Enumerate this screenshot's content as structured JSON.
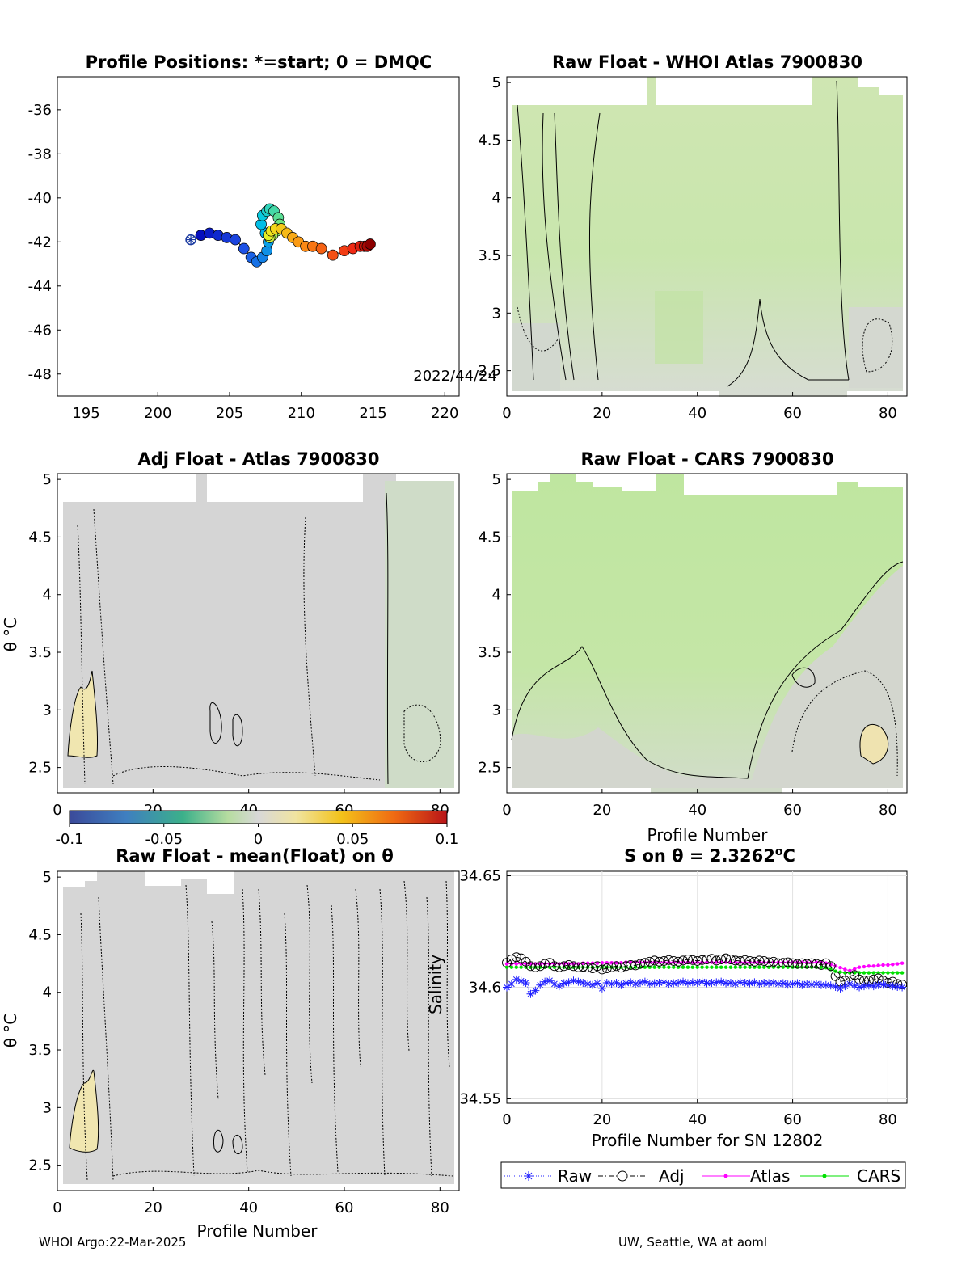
{
  "footer": {
    "left": "WHOI Argo:22-Mar-2025",
    "right": "UW, Seattle, WA at aoml"
  },
  "chart_data": [
    {
      "type": "scatter",
      "id": "positions",
      "title": "Profile Positions: *=start; 0 = DMQC",
      "xlim": [
        193,
        221
      ],
      "ylim": [
        -49,
        -34.5
      ],
      "xticks": [
        195,
        200,
        205,
        210,
        215,
        220
      ],
      "yticks": [
        -36,
        -38,
        -40,
        -42,
        -44,
        -46,
        -48
      ],
      "annotation": "2022/44/24",
      "x": [
        202.3,
        203.0,
        203.6,
        204.2,
        204.8,
        205.4,
        206.0,
        206.5,
        206.9,
        207.3,
        207.6,
        207.7,
        207.5,
        207.2,
        207.3,
        207.6,
        207.8,
        208.1,
        208.4,
        208.5,
        208.3,
        208.0,
        207.8,
        207.7,
        207.9,
        208.2,
        208.6,
        209.0,
        209.4,
        209.8,
        210.3,
        210.8,
        211.4,
        212.2,
        213.0,
        213.6,
        214.1,
        214.4,
        214.6,
        214.8
      ],
      "y": [
        -41.9,
        -41.7,
        -41.6,
        -41.7,
        -41.8,
        -41.9,
        -42.3,
        -42.7,
        -42.9,
        -42.7,
        -42.4,
        -42.0,
        -41.6,
        -41.2,
        -40.8,
        -40.6,
        -40.5,
        -40.6,
        -40.9,
        -41.2,
        -41.5,
        -41.7,
        -41.8,
        -41.7,
        -41.5,
        -41.4,
        -41.4,
        -41.6,
        -41.8,
        -42.0,
        -42.2,
        -42.2,
        -42.3,
        -42.6,
        -42.4,
        -42.3,
        -42.2,
        -42.2,
        -42.2,
        -42.1
      ]
    },
    {
      "type": "heatmap",
      "id": "raw-atlas",
      "title": "Raw Float - WHOI Atlas  7900830",
      "xlim": [
        0,
        84
      ],
      "ylim": [
        2.28,
        5.05
      ],
      "xticks": [
        0,
        20,
        40,
        60,
        80
      ],
      "yticks": [
        2.5,
        3,
        3.5,
        4,
        4.5,
        5
      ]
    },
    {
      "type": "heatmap",
      "id": "adj-atlas",
      "title": "Adj Float - Atlas  7900830",
      "ylabel": "θ °C",
      "xlim": [
        0,
        84
      ],
      "ylim": [
        2.28,
        5.05
      ],
      "xticks": [
        0,
        20,
        40,
        60,
        80
      ],
      "yticks": [
        2.5,
        3,
        3.5,
        4,
        4.5,
        5
      ]
    },
    {
      "type": "heatmap",
      "id": "raw-cars",
      "title": "Raw Float - CARS  7900830",
      "xlabel": "Profile Number",
      "xlim": [
        0,
        84
      ],
      "ylim": [
        2.28,
        5.05
      ],
      "xticks": [
        0,
        20,
        40,
        60,
        80
      ],
      "yticks": [
        2.5,
        3,
        3.5,
        4,
        4.5,
        5
      ]
    },
    {
      "type": "heatmap",
      "id": "raw-mean",
      "title": "Raw Float - mean(Float) on θ",
      "ylabel": "θ °C",
      "xlabel": "Profile Number",
      "xlim": [
        0,
        84
      ],
      "ylim": [
        2.28,
        5.05
      ],
      "xticks": [
        0,
        20,
        40,
        60,
        80
      ],
      "yticks": [
        2.5,
        3,
        3.5,
        4,
        4.5,
        5
      ]
    },
    {
      "type": "colorbar",
      "id": "colorbar",
      "range": [
        -0.1,
        0.1
      ],
      "ticks": [
        "-0.1",
        "-0.05",
        "0",
        "0.05",
        "0.1"
      ]
    },
    {
      "type": "line",
      "id": "salinity",
      "title_main": "S on θ = 2.3262",
      "title_sup": "o",
      "title_unit": "C",
      "ylabel": "Salinity",
      "xlabel": "Profile Number for SN 12802",
      "xlim": [
        0,
        84
      ],
      "ylim": [
        34.548,
        34.652
      ],
      "xticks": [
        0,
        20,
        40,
        60,
        80
      ],
      "yticks": [
        34.55,
        34.6,
        34.65
      ],
      "legend": [
        "Raw",
        "Adj",
        "Atlas",
        "CARS"
      ],
      "legend_position": "bottom",
      "grid": true,
      "series": [
        {
          "name": "Raw",
          "color": "#2020ff",
          "y": [
            34.6,
            34.6015,
            34.6035,
            34.6028,
            34.602,
            34.597,
            34.5985,
            34.601,
            34.6025,
            34.603,
            34.6015,
            34.6005,
            34.6018,
            34.6022,
            34.603,
            34.6025,
            34.602,
            34.6015,
            34.601,
            34.6018,
            34.5995,
            34.602,
            34.6015,
            34.602,
            34.601,
            34.6018,
            34.6022,
            34.6015,
            34.602,
            34.6025,
            34.6015,
            34.6018,
            34.602,
            34.6022,
            34.6015,
            34.6018,
            34.602,
            34.6025,
            34.6018,
            34.6022,
            34.602,
            34.6025,
            34.6018,
            34.602,
            34.6022,
            34.6025,
            34.6018,
            34.602,
            34.6015,
            34.6022,
            34.602,
            34.6018,
            34.6022,
            34.6015,
            34.602,
            34.6018,
            34.602,
            34.6015,
            34.6018,
            34.6012,
            34.6015,
            34.6018,
            34.601,
            34.6015,
            34.6012,
            34.6015,
            34.601,
            34.601,
            34.6008,
            34.6002,
            34.5995,
            34.6005,
            34.6015,
            34.6008,
            34.6,
            34.6005,
            34.6008,
            34.6005,
            34.601,
            34.6012,
            34.6008,
            34.6005,
            34.6002,
            34.6
          ]
        },
        {
          "name": "Adj",
          "color": "#000000",
          "y": [
            34.611,
            34.6125,
            34.6135,
            34.613,
            34.6115,
            34.6095,
            34.609,
            34.6095,
            34.6105,
            34.611,
            34.6095,
            34.609,
            34.6095,
            34.61,
            34.6095,
            34.609,
            34.6092,
            34.6088,
            34.6085,
            34.6095,
            34.608,
            34.6085,
            34.609,
            34.6095,
            34.6088,
            34.6095,
            34.61,
            34.6098,
            34.6105,
            34.611,
            34.6115,
            34.612,
            34.6115,
            34.6118,
            34.6122,
            34.6118,
            34.6115,
            34.612,
            34.6125,
            34.6122,
            34.6118,
            34.6122,
            34.6125,
            34.6128,
            34.612,
            34.6125,
            34.613,
            34.6125,
            34.612,
            34.6118,
            34.6122,
            34.6118,
            34.6115,
            34.612,
            34.6118,
            34.6112,
            34.6115,
            34.6108,
            34.611,
            34.6112,
            34.6108,
            34.6105,
            34.6108,
            34.6105,
            34.6108,
            34.6105,
            34.61,
            34.6108,
            34.6095,
            34.605,
            34.6025,
            34.603,
            34.605,
            34.6055,
            34.6035,
            34.603,
            34.603,
            34.6035,
            34.604,
            34.603,
            34.602,
            34.6025,
            34.6015,
            34.6012
          ]
        },
        {
          "name": "Atlas",
          "color": "#ff00ff",
          "y": [
            34.6105,
            34.6105,
            34.6105,
            34.6105,
            34.6105,
            34.6105,
            34.6105,
            34.6105,
            34.6105,
            34.6105,
            34.6105,
            34.6105,
            34.6105,
            34.6105,
            34.6105,
            34.6105,
            34.6108,
            34.6108,
            34.6108,
            34.6108,
            34.611,
            34.611,
            34.611,
            34.611,
            34.611,
            34.6112,
            34.6112,
            34.6112,
            34.6112,
            34.6112,
            34.6112,
            34.6112,
            34.6112,
            34.6112,
            34.6112,
            34.6112,
            34.6112,
            34.6112,
            34.6112,
            34.6112,
            34.6112,
            34.6112,
            34.6112,
            34.6112,
            34.6112,
            34.6112,
            34.6112,
            34.6112,
            34.6112,
            34.6112,
            34.6112,
            34.6112,
            34.6112,
            34.6112,
            34.6112,
            34.6112,
            34.6112,
            34.6112,
            34.6112,
            34.6112,
            34.6112,
            34.6112,
            34.6112,
            34.6112,
            34.6112,
            34.6112,
            34.6112,
            34.6108,
            34.6102,
            34.6095,
            34.6088,
            34.608,
            34.6075,
            34.6082,
            34.609,
            34.6092,
            34.6095,
            34.6095,
            34.6098,
            34.61,
            34.61,
            34.6102,
            34.6105,
            34.6108
          ]
        },
        {
          "name": "CARS",
          "color": "#00e000",
          "y": [
            34.609,
            34.609,
            34.609,
            34.609,
            34.609,
            34.609,
            34.609,
            34.609,
            34.609,
            34.609,
            34.609,
            34.609,
            34.609,
            34.609,
            34.609,
            34.609,
            34.609,
            34.609,
            34.609,
            34.609,
            34.609,
            34.609,
            34.609,
            34.609,
            34.609,
            34.609,
            34.609,
            34.609,
            34.609,
            34.609,
            34.609,
            34.609,
            34.609,
            34.609,
            34.609,
            34.609,
            34.609,
            34.609,
            34.609,
            34.609,
            34.609,
            34.609,
            34.609,
            34.609,
            34.609,
            34.609,
            34.609,
            34.609,
            34.609,
            34.609,
            34.609,
            34.609,
            34.609,
            34.609,
            34.609,
            34.609,
            34.609,
            34.609,
            34.609,
            34.609,
            34.609,
            34.609,
            34.609,
            34.609,
            34.609,
            34.609,
            34.609,
            34.6088,
            34.608,
            34.6072,
            34.6068,
            34.6065,
            34.6065,
            34.6065,
            34.6065,
            34.6065,
            34.6065,
            34.6065,
            34.6065,
            34.6065,
            34.6065,
            34.6065,
            34.6065,
            34.6065
          ]
        }
      ]
    }
  ]
}
